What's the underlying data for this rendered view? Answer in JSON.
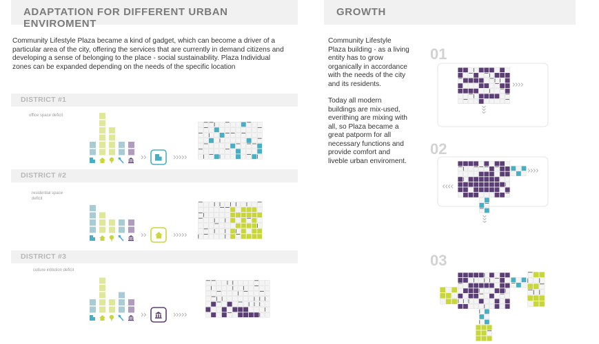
{
  "left": {
    "title": "ADAPTATION FOR DIFFERENT URBAN ENVIROMENT",
    "intro": "Community Lifestyle Plaza became a kind of gadget, which can become a driver of a particular area of the city, offering the services that are currently in demand citizens and developing a sense of belonging to the place - social sustainability. Plaza Individual zones can be expanded depending on the needs of the specific location",
    "districts": [
      {
        "label": "DISTRICT #1",
        "note": "office space deficit",
        "icon": "office-building-icon",
        "accent": "#4aaec2"
      },
      {
        "label": "DISTRICT #2",
        "note": "residential space deficit",
        "icon": "house-icon",
        "accent": "#c9d63b"
      },
      {
        "label": "DISTRICT #3",
        "note": "culture intitution deficit",
        "icon": "museum-icon",
        "accent": "#5b3e73"
      }
    ],
    "bar_legend_icons": [
      "office-icon",
      "house-icon",
      "tree-icon",
      "tools-icon",
      "museum-icon"
    ]
  },
  "right": {
    "title": "GROWTH",
    "p1": "Community Lifestyle Plaza building - as a living entity has to grow organically in accordance with the needs of the city and its residents.",
    "p2": "Today all modern buildings are mix-used, everithing are mixing with all, so Plaza became a great patporm for all necessary functions and provide comfort and liveble urban enviroment.",
    "steps": [
      "01",
      "02",
      "03"
    ]
  },
  "colors": {
    "teal": "#4aaec2",
    "bar_teal": "#a9ccd4",
    "lime": "#c9d63b",
    "bar_lime": "#dfe79a",
    "purple": "#5b3e73",
    "bar_purple": "#b09cbd",
    "header_bg": "#f1f1f1"
  }
}
